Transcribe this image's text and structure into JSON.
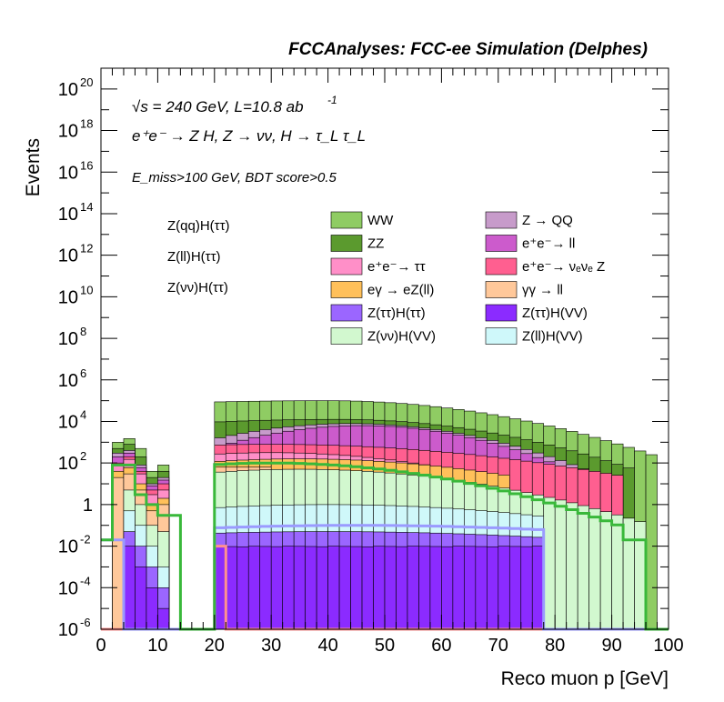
{
  "chart_data": {
    "type": "histogram-stacked",
    "title": "FCCAnalyses: FCC-ee Simulation (Delphes)",
    "xlabel": "Reco muon p [GeV]",
    "ylabel": "Events",
    "xlim": [
      0,
      100
    ],
    "ylim": [
      1e-06,
      1e+21
    ],
    "ylog": true,
    "y_ticks": [
      {
        "v": 1e-06,
        "base": "10",
        "exp": "-6"
      },
      {
        "v": 0.0001,
        "base": "10",
        "exp": "-4"
      },
      {
        "v": 0.01,
        "base": "10",
        "exp": "-2"
      },
      {
        "v": 1,
        "base": "1",
        "exp": ""
      },
      {
        "v": 100.0,
        "base": "10",
        "exp": "2"
      },
      {
        "v": 10000.0,
        "base": "10",
        "exp": "4"
      },
      {
        "v": 1000000.0,
        "base": "10",
        "exp": "6"
      },
      {
        "v": 100000000.0,
        "base": "10",
        "exp": "8"
      },
      {
        "v": 10000000000.0,
        "base": "10",
        "exp": "10"
      },
      {
        "v": 1000000000000.0,
        "base": "10",
        "exp": "12"
      },
      {
        "v": 100000000000000.0,
        "base": "10",
        "exp": "14"
      },
      {
        "v": 1e+16,
        "base": "10",
        "exp": "16"
      },
      {
        "v": 1e+18,
        "base": "10",
        "exp": "18"
      },
      {
        "v": 1e+20,
        "base": "10",
        "exp": "20"
      }
    ],
    "x_ticks": [
      0,
      10,
      20,
      30,
      40,
      50,
      60,
      70,
      80,
      90,
      100
    ],
    "bin_width": 2,
    "annotations": {
      "line1": "√s = 240 GeV, L=10.8 ab",
      "line1_sup": "-1",
      "line2": "e⁺e⁻ → Z H, Z → νν, H → τ_L τ_L",
      "line3": "E_miss>100 GeV, BDT score>0.5"
    },
    "stack_boundaries": [
      {
        "name": "ZZ",
        "color": "#5aa02f",
        "top": [
          1e-06,
          800,
          1000,
          300,
          30,
          50,
          0,
          0,
          0,
          0,
          90000.0,
          80000.0,
          70000.0,
          70000.0,
          60000.0,
          60000.0,
          50000.0,
          50000.0,
          40000.0,
          40000.0,
          30000.0,
          30000.0,
          20000.0,
          20000.0,
          20000.0,
          10000.0,
          10000.0,
          10000.0,
          8000.0,
          6000.0,
          4000.0,
          3000.0,
          2000.0,
          1000.0,
          600.0,
          400.0,
          200.0,
          100.0,
          40,
          10,
          1e-06,
          0,
          0,
          0,
          0,
          0,
          0,
          0,
          0,
          0
        ]
      },
      {
        "name": "WW",
        "color": "#8fcc63",
        "top": [
          1e-06,
          1000.0,
          1200.0,
          400,
          50,
          70,
          0,
          0,
          0,
          0,
          100000.0,
          100000.0,
          100000.0,
          100000.0,
          100000.0,
          100000.0,
          100000.0,
          100000.0,
          100000.0,
          100000.0,
          100000.0,
          100000.0,
          90000.0,
          90000.0,
          80000.0,
          80000.0,
          70000.0,
          60000.0,
          50000.0,
          40000.0,
          30000.0,
          30000.0,
          20000.0,
          20000.0,
          10000.0,
          8000.0,
          5000.0,
          3000.0,
          1500.0,
          800,
          400,
          200,
          100,
          1e-06,
          0,
          0,
          0,
          0,
          0,
          0
        ]
      }
    ],
    "series": [
      {
        "name": "WW",
        "color": "#8fcc63"
      },
      {
        "name": "Z → QQ",
        "color": "#c79bca"
      },
      {
        "name": "ZZ",
        "color": "#5b9a2e"
      },
      {
        "name": "e⁺e⁻→ ll",
        "color": "#cc5bcc"
      },
      {
        "name": "e⁺e⁻→ ττ",
        "color": "#ff8fc8"
      },
      {
        "name": "e⁺e⁻→ νₑνₑ Z",
        "color": "#ff5f90"
      },
      {
        "name": "eγ → eZ(ll)",
        "color": "#ffc05a"
      },
      {
        "name": "γγ → ll",
        "color": "#ffc89a"
      },
      {
        "name": "Z(ττ)H(ττ)",
        "color": "#9b66ff"
      },
      {
        "name": "Z(ττ)H(VV)",
        "color": "#8b2bff"
      },
      {
        "name": "Z(νν)H(VV)",
        "color": "#d2f8cf"
      },
      {
        "name": "Z(ll)H(VV)",
        "color": "#cff8fa"
      }
    ],
    "lines": [
      {
        "name": "Z(qq)H(ττ)",
        "color": "#ff9090"
      },
      {
        "name": "Z(ll)H(ττ)",
        "color": "#9a9aff"
      },
      {
        "name": "Z(νν)H(ττ)",
        "color": "#39b83a"
      }
    ],
    "legend_placement": "top-center",
    "grid": false
  }
}
